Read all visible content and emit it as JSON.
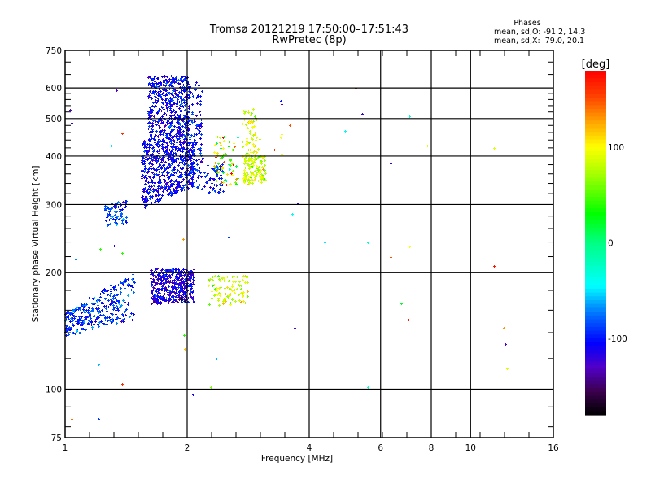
{
  "chart_data": {
    "type": "scatter",
    "title": "Tromsø 20121219 17:50:00–17:51:43",
    "subtitle": "RwPretec (8p)",
    "xlabel": "Frequency [MHz]",
    "ylabel": "Stationary phase Virtual Height [km]",
    "xscale": "log",
    "yscale": "log",
    "xlim": [
      1,
      16
    ],
    "ylim": [
      75,
      750
    ],
    "xticks": [
      1,
      2,
      4,
      6,
      8,
      10,
      16
    ],
    "xtick_labels": [
      "1",
      "2",
      "4",
      "6",
      "8",
      "10",
      "16"
    ],
    "yticks": [
      75,
      100,
      200,
      300,
      400,
      500,
      600,
      750
    ],
    "ytick_labels": [
      "75",
      "100",
      "200",
      "300",
      "400",
      "500",
      "600",
      "750"
    ],
    "grid_x": [
      2,
      4,
      6,
      8,
      10
    ],
    "grid_y": [
      100,
      200,
      300,
      400,
      500,
      600
    ],
    "annotation": {
      "heading": "Phases",
      "line1": "mean, sd,O: -91.2, 14.3",
      "line2": "mean, sd,X:  79.0, 20.1"
    },
    "colorbar": {
      "label": "[deg]",
      "range": [
        -180,
        180
      ],
      "ticks": [
        100,
        0,
        -100
      ],
      "tick_labels": [
        "100",
        "0",
        "-100"
      ]
    },
    "clusters": [
      {
        "name": "F-O-upper",
        "f": [
          1.6,
          2.03
        ],
        "h_lo": [
          440,
          440
        ],
        "h_hi": [
          645,
          645
        ],
        "phase_mean": -105,
        "phase_sd": 14,
        "n": 520
      },
      {
        "name": "F-O-lower",
        "f": [
          1.54,
          2.08
        ],
        "h_lo": [
          292,
          335
        ],
        "h_hi": [
          440,
          440
        ],
        "phase_mean": -105,
        "phase_sd": 14,
        "n": 620
      },
      {
        "name": "F-O-edge",
        "f": [
          2.03,
          2.18
        ],
        "h_lo": [
          330,
          330
        ],
        "h_hi": [
          630,
          630
        ],
        "phase_mean": -100,
        "phase_sd": 14,
        "n": 110
      },
      {
        "name": "F-low-blob",
        "f": [
          1.25,
          1.42
        ],
        "h_lo": [
          262,
          268
        ],
        "h_hi": [
          300,
          310
        ],
        "phase_mean": -85,
        "phase_sd": 14,
        "n": 75
      },
      {
        "name": "E-trace",
        "f": [
          1.0,
          1.48
        ],
        "h_lo": [
          137,
          150
        ],
        "h_hi": [
          158,
          200
        ],
        "phase_mean": -92,
        "phase_sd": 16,
        "n": 320
      },
      {
        "name": "Es-blob",
        "f": [
          1.62,
          2.08
        ],
        "h_lo": [
          166,
          168
        ],
        "h_hi": [
          205,
          205
        ],
        "phase_mean": -115,
        "phase_sd": 18,
        "n": 420
      },
      {
        "name": "X-lower",
        "f": [
          2.75,
          3.12
        ],
        "h_lo": [
          340,
          340
        ],
        "h_hi": [
          400,
          400
        ],
        "phase_mean": 85,
        "phase_sd": 15,
        "n": 130
      },
      {
        "name": "X-upper",
        "f": [
          2.72,
          3.02
        ],
        "h_lo": [
          400,
          400
        ],
        "h_hi": [
          530,
          530
        ],
        "phase_mean": 92,
        "phase_sd": 18,
        "n": 60
      },
      {
        "name": "X-mixed",
        "f": [
          2.32,
          2.68
        ],
        "h_lo": [
          335,
          335
        ],
        "h_hi": [
          450,
          450
        ],
        "phase_mean": 70,
        "phase_sd": 60,
        "n": 75
      },
      {
        "name": "X-blue",
        "f": [
          2.2,
          2.45
        ],
        "h_lo": [
          322,
          322
        ],
        "h_hi": [
          382,
          382
        ],
        "phase_mean": -100,
        "phase_sd": 14,
        "n": 55
      },
      {
        "name": "X-low",
        "f": [
          2.25,
          2.82
        ],
        "h_lo": [
          165,
          165
        ],
        "h_hi": [
          197,
          197
        ],
        "phase_mean": 85,
        "phase_sd": 15,
        "n": 95
      }
    ],
    "points": [
      [
        5.2,
        600,
        170
      ],
      [
        3.4,
        556,
        -100
      ],
      [
        3.42,
        545,
        -130
      ],
      [
        5.4,
        514,
        -120
      ],
      [
        7.06,
        508,
        -30
      ],
      [
        3.58,
        481,
        150
      ],
      [
        4.9,
        465,
        -40
      ],
      [
        3.42,
        455,
        95
      ],
      [
        3.4,
        446,
        100
      ],
      [
        3.28,
        415,
        160
      ],
      [
        3.42,
        405,
        95
      ],
      [
        7.8,
        425,
        90
      ],
      [
        11.4,
        419,
        90
      ],
      [
        6.35,
        383,
        -120
      ],
      [
        3.75,
        302,
        -110
      ],
      [
        3.63,
        283,
        -40
      ],
      [
        4.37,
        240,
        -50
      ],
      [
        5.57,
        240,
        -30
      ],
      [
        7.06,
        234,
        100
      ],
      [
        6.35,
        219,
        150
      ],
      [
        11.4,
        208,
        170
      ],
      [
        6.75,
        167,
        20
      ],
      [
        4.37,
        159,
        95
      ],
      [
        7.0,
        151,
        170
      ],
      [
        3.68,
        144,
        -130
      ],
      [
        12.07,
        144,
        130
      ],
      [
        12.2,
        131,
        -130
      ],
      [
        12.3,
        113,
        90
      ],
      [
        5.57,
        101,
        -30
      ],
      [
        1.03,
        527,
        -130
      ],
      [
        1.04,
        487,
        -120
      ],
      [
        1.34,
        593,
        -130
      ],
      [
        1.38,
        459,
        160
      ],
      [
        1.3,
        425,
        -50
      ],
      [
        1.04,
        84,
        140
      ],
      [
        1.21,
        84,
        -90
      ],
      [
        1.38,
        103,
        160
      ],
      [
        2.07,
        97,
        -110
      ],
      [
        2.29,
        101,
        60
      ],
      [
        2.36,
        120,
        -60
      ],
      [
        1.21,
        116,
        -60
      ],
      [
        1.96,
        138,
        40
      ],
      [
        1.97,
        127,
        120
      ],
      [
        1.95,
        244,
        130
      ],
      [
        2.53,
        246,
        -90
      ],
      [
        1.06,
        216,
        -70
      ],
      [
        1.22,
        230,
        40
      ],
      [
        1.38,
        225,
        40
      ],
      [
        1.32,
        235,
        -110
      ]
    ]
  }
}
